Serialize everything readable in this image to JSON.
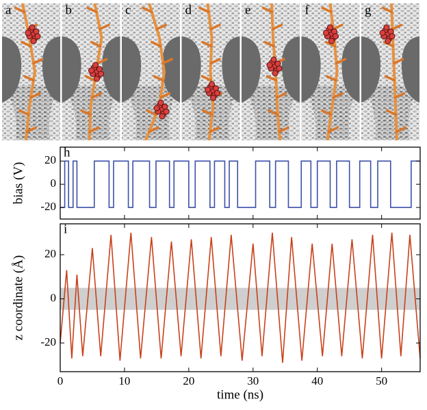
{
  "panels": [
    {
      "label": "a"
    },
    {
      "label": "b"
    },
    {
      "label": "c"
    },
    {
      "label": "d"
    },
    {
      "label": "e"
    },
    {
      "label": "f"
    },
    {
      "label": "g"
    }
  ],
  "chart_data": [
    {
      "type": "line",
      "panel_label": "h",
      "y_label": "bias (V)",
      "color": "#3b4fa8",
      "xlim": [
        0,
        56
      ],
      "ylim": [
        -30,
        32
      ],
      "yticks": [
        -20,
        0,
        20
      ],
      "x": [
        0,
        0.7,
        0.7,
        1.3,
        1.3,
        2.0,
        2.0,
        2.6,
        2.6,
        5.3,
        5.3,
        7.6,
        7.6,
        8.3,
        8.3,
        10.6,
        10.6,
        11.3,
        11.3,
        13.9,
        13.9,
        14.9,
        14.9,
        17.0,
        17.0,
        17.7,
        17.7,
        20.0,
        20.0,
        21.0,
        21.0,
        23.3,
        23.3,
        24.0,
        24.0,
        25.6,
        25.6,
        26.3,
        26.3,
        27.6,
        27.6,
        30.4,
        30.4,
        32.6,
        32.6,
        33.5,
        33.5,
        35.5,
        35.5,
        37.5,
        37.5,
        39.0,
        39.0,
        40.0,
        40.0,
        42.0,
        42.0,
        43.0,
        43.0,
        45.0,
        45.0,
        46.6,
        46.6,
        48.3,
        48.3,
        49.4,
        49.4,
        51.4,
        51.4,
        54.6,
        54.6,
        56
      ],
      "values": [
        -20,
        -20,
        20,
        20,
        -20,
        -20,
        20,
        20,
        -20,
        -20,
        20,
        20,
        -20,
        -20,
        20,
        20,
        -20,
        -20,
        20,
        20,
        -20,
        -20,
        20,
        20,
        -20,
        -20,
        20,
        20,
        -20,
        -20,
        20,
        20,
        -20,
        -20,
        20,
        20,
        -20,
        -20,
        20,
        20,
        -20,
        -20,
        20,
        20,
        -20,
        -20,
        20,
        20,
        -20,
        -20,
        20,
        20,
        -20,
        -20,
        20,
        20,
        -20,
        -20,
        20,
        20,
        -20,
        -20,
        20,
        20,
        -20,
        -20,
        20,
        20,
        -20,
        -20,
        20,
        20
      ]
    },
    {
      "type": "line",
      "panel_label": "i",
      "y_label": "z coordinate (Å)",
      "x_label": "time (ns)",
      "color": "#c8401a",
      "xlim": [
        0,
        56
      ],
      "ylim": [
        -33,
        34
      ],
      "yticks": [
        -20,
        0,
        20
      ],
      "xticks": [
        0,
        10,
        20,
        30,
        40,
        50
      ],
      "band": [
        -5,
        5
      ],
      "band_color": "#cfcfcf",
      "x": [
        0,
        1.0,
        1.8,
        2.6,
        3.5,
        5.0,
        6.3,
        7.9,
        9.3,
        11.0,
        12.5,
        14.2,
        15.7,
        17.3,
        18.8,
        20.4,
        21.9,
        23.5,
        25.0,
        26.6,
        28.3,
        30.0,
        31.4,
        33.0,
        34.6,
        36.0,
        37.6,
        39.2,
        40.8,
        42.3,
        43.8,
        45.4,
        47.0,
        48.6,
        50.0,
        51.6,
        53.0,
        54.4,
        56
      ],
      "values": [
        -20,
        13,
        -27,
        11,
        -26,
        23,
        -26,
        29,
        -28,
        30,
        -27,
        28,
        -27,
        26,
        -26,
        27,
        -27,
        28,
        -26,
        29,
        -28,
        25,
        -26,
        30,
        -29,
        28,
        -28,
        25,
        -26,
        25,
        -26,
        27,
        -27,
        29,
        -27,
        30,
        -26,
        29,
        -27
      ]
    }
  ]
}
